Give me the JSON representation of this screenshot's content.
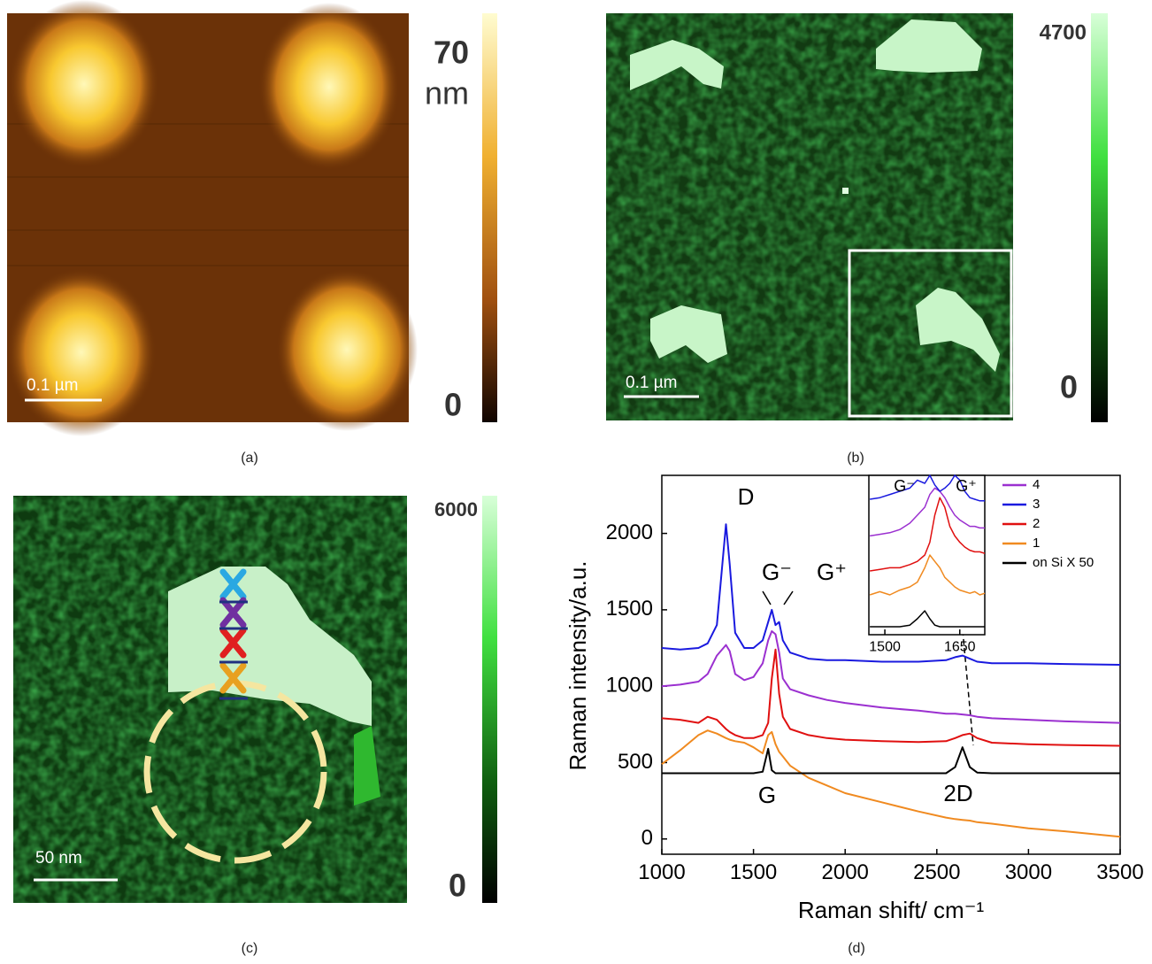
{
  "panels": [
    {
      "caption": "(a)",
      "colorbar": [
        70,
        0
      ],
      "colorbar_unit": "nm",
      "scalebar": "0.1 µm"
    },
    {
      "caption": "(b)",
      "colorbar": [
        4700,
        0
      ],
      "scalebar": "0.1 µm"
    },
    {
      "caption": "(c)",
      "colorbar": [
        6000,
        0
      ],
      "scalebar": "50 nm"
    },
    {
      "caption": "(d)"
    }
  ],
  "chart_data": [
    {
      "type": "line",
      "x_label": "Raman shift/ cm⁻¹",
      "y_label": "Raman intensity/a.u.",
      "annotations": [
        "D",
        "G⁻",
        "G⁺",
        "G",
        "2D"
      ],
      "xlim": [
        1000,
        3500
      ],
      "ylim": [
        -100,
        2380
      ],
      "xticks": [
        1000,
        1500,
        2000,
        2500,
        3000,
        3500
      ],
      "yticks": [
        0,
        500,
        1000,
        1500,
        2000
      ],
      "legend": "upper right",
      "x": [
        1000,
        1100,
        1200,
        1250,
        1300,
        1350,
        1370,
        1400,
        1450,
        1500,
        1550,
        1580,
        1600,
        1620,
        1640,
        1660,
        1700,
        1800,
        1900,
        2000,
        2200,
        2400,
        2550,
        2600,
        2640,
        2680,
        2720,
        2800,
        3000,
        3200,
        3500
      ],
      "series": [
        {
          "name": "4",
          "color": "#9b30d0",
          "values": [
            1000,
            1010,
            1030,
            1080,
            1200,
            1270,
            1230,
            1080,
            1040,
            1060,
            1150,
            1300,
            1360,
            1340,
            1220,
            1050,
            980,
            940,
            910,
            890,
            860,
            840,
            820,
            820,
            815,
            810,
            800,
            790,
            780,
            770,
            760
          ]
        },
        {
          "name": "3",
          "color": "#1a1adf",
          "values": [
            1250,
            1240,
            1250,
            1280,
            1400,
            2060,
            1800,
            1350,
            1250,
            1250,
            1300,
            1420,
            1500,
            1400,
            1420,
            1300,
            1220,
            1180,
            1170,
            1170,
            1160,
            1160,
            1170,
            1190,
            1200,
            1180,
            1160,
            1150,
            1150,
            1145,
            1140
          ]
        },
        {
          "name": "2",
          "color": "#e01010",
          "values": [
            790,
            780,
            760,
            800,
            780,
            720,
            700,
            680,
            660,
            660,
            680,
            760,
            1050,
            1240,
            950,
            800,
            720,
            680,
            660,
            650,
            640,
            635,
            640,
            660,
            680,
            690,
            660,
            630,
            620,
            615,
            610
          ]
        },
        {
          "name": "1",
          "color": "#f08a20",
          "values": [
            490,
            580,
            680,
            710,
            690,
            660,
            650,
            640,
            630,
            600,
            560,
            680,
            700,
            620,
            570,
            540,
            480,
            400,
            350,
            300,
            240,
            180,
            140,
            130,
            125,
            120,
            110,
            100,
            70,
            50,
            15
          ]
        },
        {
          "name": "on Si X 50",
          "color": "#000000",
          "values": [
            430,
            430,
            430,
            430,
            430,
            430,
            430,
            430,
            430,
            430,
            440,
            590,
            450,
            430,
            430,
            430,
            430,
            430,
            430,
            430,
            430,
            430,
            430,
            470,
            600,
            470,
            435,
            430,
            430,
            430,
            430
          ]
        }
      ]
    },
    {
      "type": "line",
      "annotations": [
        "G⁻",
        "G⁺"
      ],
      "xlim": [
        1468,
        1700
      ],
      "ylim": [
        0,
        100
      ],
      "xticks": [
        1500,
        1650
      ],
      "x": [
        1470,
        1490,
        1510,
        1530,
        1550,
        1565,
        1580,
        1590,
        1600,
        1610,
        1620,
        1630,
        1640,
        1650,
        1660,
        1670,
        1680,
        1690,
        1700
      ],
      "series": [
        {
          "color": "#9b30d0",
          "values": [
            62,
            63,
            64,
            66,
            70,
            75,
            80,
            88,
            92,
            90,
            86,
            80,
            75,
            72,
            70,
            68,
            68,
            67,
            67
          ]
        },
        {
          "color": "#1a1adf",
          "values": [
            85,
            86,
            88,
            90,
            92,
            97,
            95,
            100,
            94,
            90,
            92,
            95,
            100,
            97,
            90,
            86,
            85,
            84,
            84
          ]
        },
        {
          "color": "#e01010",
          "values": [
            40,
            41,
            42,
            42,
            44,
            46,
            50,
            58,
            75,
            86,
            80,
            68,
            62,
            58,
            55,
            53,
            52,
            52,
            51
          ]
        },
        {
          "color": "#f08a20",
          "values": [
            25,
            27,
            25,
            28,
            30,
            33,
            42,
            50,
            46,
            42,
            36,
            33,
            30,
            28,
            27,
            26,
            27,
            25,
            26
          ]
        },
        {
          "color": "#000000",
          "values": [
            5,
            5,
            5,
            5,
            6,
            10,
            15,
            10,
            6,
            5,
            5,
            5,
            5,
            5,
            5,
            5,
            5,
            5,
            5
          ]
        }
      ]
    }
  ]
}
